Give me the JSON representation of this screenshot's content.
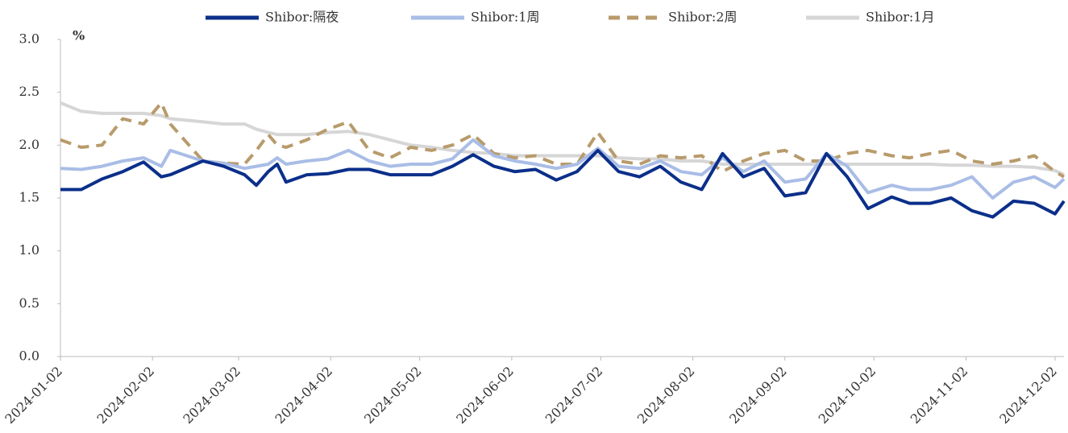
{
  "chart_data": {
    "type": "line",
    "y_axis_unit": "%",
    "x": [
      "2024-01-02",
      "2024-01-09",
      "2024-01-16",
      "2024-01-23",
      "2024-01-30",
      "2024-02-05",
      "2024-02-08",
      "2024-02-19",
      "2024-02-26",
      "2024-03-04",
      "2024-03-08",
      "2024-03-12",
      "2024-03-15",
      "2024-03-18",
      "2024-03-25",
      "2024-04-01",
      "2024-04-08",
      "2024-04-15",
      "2024-04-22",
      "2024-04-29",
      "2024-05-06",
      "2024-05-13",
      "2024-05-20",
      "2024-05-27",
      "2024-06-03",
      "2024-06-10",
      "2024-06-17",
      "2024-06-24",
      "2024-07-01",
      "2024-07-08",
      "2024-07-15",
      "2024-07-22",
      "2024-07-29",
      "2024-08-05",
      "2024-08-12",
      "2024-08-19",
      "2024-08-26",
      "2024-09-02",
      "2024-09-09",
      "2024-09-16",
      "2024-09-23",
      "2024-09-30",
      "2024-10-08",
      "2024-10-14",
      "2024-10-21",
      "2024-10-28",
      "2024-11-04",
      "2024-11-11",
      "2024-11-18",
      "2024-11-25",
      "2024-12-02",
      "2024-12-05"
    ],
    "series": [
      {
        "name": "Shibor:隔夜",
        "color": "#0b2f8a",
        "dash": false,
        "values": [
          1.58,
          1.58,
          1.68,
          1.75,
          1.84,
          1.7,
          1.72,
          1.85,
          1.8,
          1.72,
          1.62,
          1.75,
          1.82,
          1.65,
          1.72,
          1.73,
          1.77,
          1.77,
          1.72,
          1.72,
          1.72,
          1.8,
          1.91,
          1.8,
          1.75,
          1.77,
          1.67,
          1.75,
          1.95,
          1.75,
          1.7,
          1.8,
          1.65,
          1.58,
          1.92,
          1.7,
          1.78,
          1.52,
          1.55,
          1.92,
          1.7,
          1.4,
          1.51,
          1.45,
          1.45,
          1.5,
          1.38,
          1.32,
          1.47,
          1.45,
          1.35,
          1.47
        ]
      },
      {
        "name": "Shibor:1周",
        "color": "#a9bde6",
        "dash": false,
        "values": [
          1.78,
          1.77,
          1.8,
          1.85,
          1.88,
          1.8,
          1.95,
          1.85,
          1.83,
          1.78,
          1.8,
          1.82,
          1.88,
          1.82,
          1.85,
          1.87,
          1.95,
          1.85,
          1.8,
          1.82,
          1.82,
          1.87,
          2.05,
          1.9,
          1.85,
          1.82,
          1.78,
          1.82,
          1.97,
          1.8,
          1.78,
          1.85,
          1.75,
          1.72,
          1.88,
          1.75,
          1.85,
          1.65,
          1.68,
          1.92,
          1.8,
          1.55,
          1.62,
          1.58,
          1.58,
          1.62,
          1.7,
          1.5,
          1.65,
          1.7,
          1.6,
          1.68
        ]
      },
      {
        "name": "Shibor:2周",
        "color": "#b89b6c",
        "dash": true,
        "values": [
          2.05,
          1.98,
          2.0,
          2.25,
          2.2,
          2.4,
          2.2,
          1.85,
          1.83,
          1.82,
          1.95,
          2.1,
          2.0,
          1.98,
          2.05,
          2.15,
          2.22,
          1.95,
          1.88,
          1.98,
          1.95,
          2.0,
          2.1,
          1.92,
          1.88,
          1.9,
          1.82,
          1.82,
          2.12,
          1.85,
          1.82,
          1.9,
          1.88,
          1.9,
          1.75,
          1.85,
          1.92,
          1.95,
          1.85,
          1.85,
          1.92,
          1.95,
          1.9,
          1.88,
          1.92,
          1.95,
          1.85,
          1.82,
          1.85,
          1.9,
          1.75,
          1.7
        ]
      },
      {
        "name": "Shibor:1月",
        "color": "#d6d6d6",
        "dash": false,
        "values": [
          2.4,
          2.32,
          2.3,
          2.3,
          2.3,
          2.28,
          2.25,
          2.22,
          2.2,
          2.2,
          2.15,
          2.12,
          2.1,
          2.1,
          2.1,
          2.12,
          2.13,
          2.1,
          2.05,
          2.0,
          1.98,
          1.95,
          1.93,
          1.92,
          1.9,
          1.9,
          1.9,
          1.9,
          1.9,
          1.88,
          1.87,
          1.87,
          1.85,
          1.85,
          1.82,
          1.82,
          1.82,
          1.82,
          1.82,
          1.82,
          1.82,
          1.82,
          1.82,
          1.82,
          1.82,
          1.81,
          1.81,
          1.8,
          1.8,
          1.79,
          1.76,
          1.72
        ]
      }
    ],
    "xlim": [
      "2024-01-02",
      "2024-12-05"
    ],
    "xticks": [
      "2024-01-02",
      "2024-02-02",
      "2024-03-02",
      "2024-04-02",
      "2024-05-02",
      "2024-06-02",
      "2024-07-02",
      "2024-08-02",
      "2024-09-02",
      "2024-10-02",
      "2024-11-02",
      "2024-12-02"
    ],
    "ylim": [
      0,
      3
    ],
    "yticks": [
      {
        "value": 0,
        "label": "0.0"
      },
      {
        "value": 0.5,
        "label": "0.5"
      },
      {
        "value": 1,
        "label": "1.0"
      },
      {
        "value": 1.5,
        "label": "1.5"
      },
      {
        "value": 2,
        "label": "2.0"
      },
      {
        "value": 2.5,
        "label": "2.5"
      },
      {
        "value": 3,
        "label": "3.0"
      }
    ],
    "legend": "top",
    "grid": false
  }
}
